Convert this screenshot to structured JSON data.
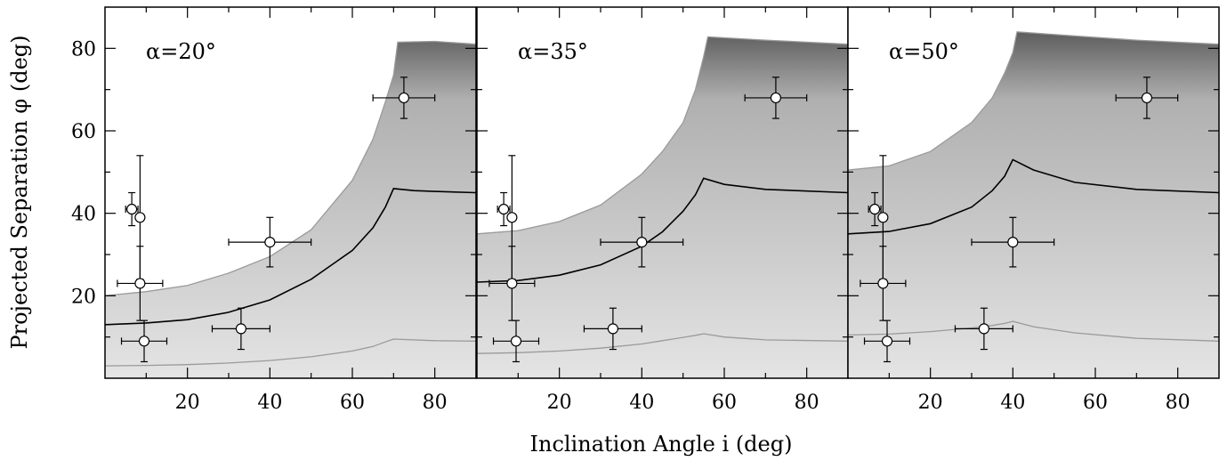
{
  "figure": {
    "xlabel": "Inclination Angle i (deg)",
    "ylabel": "Projected Separation φ (deg)"
  },
  "chart_data": [
    {
      "type": "scatter",
      "annotation": "α=20°",
      "alpha_deg": 20,
      "xlim": [
        0,
        90
      ],
      "ylim": [
        0,
        90
      ],
      "xticks": [
        20,
        40,
        60,
        80
      ],
      "yticks": [
        20,
        40,
        60,
        80
      ],
      "points": [
        {
          "x": 6.5,
          "y": 41,
          "xerr": 1.5,
          "yerr": 4
        },
        {
          "x": 8.5,
          "y": 39,
          "xerr": 0,
          "yerr": 15
        },
        {
          "x": 8.5,
          "y": 23,
          "xerr": 5.5,
          "yerr": 9
        },
        {
          "x": 9.5,
          "y": 9,
          "xerr": 5.5,
          "yerr": 5
        },
        {
          "x": 33,
          "y": 12,
          "xerr": 7,
          "yerr": 5
        },
        {
          "x": 40,
          "y": 33,
          "xerr": 10,
          "yerr": 6
        },
        {
          "x": 72.5,
          "y": 68,
          "xerr": 7.5,
          "yerr": 5
        }
      ],
      "curves": {
        "upper_x": [
          0,
          10,
          20,
          30,
          40,
          50,
          60,
          65,
          68,
          70,
          71,
          80,
          90
        ],
        "upper_y": [
          20,
          21,
          22.5,
          25.5,
          29.5,
          36,
          48,
          58,
          67,
          73.5,
          81.5,
          81.7,
          81
        ],
        "middle_x": [
          0,
          10,
          20,
          30,
          40,
          50,
          60,
          65,
          68,
          70,
          75,
          80,
          90
        ],
        "middle_y": [
          13,
          13.4,
          14.2,
          16,
          19,
          24,
          31,
          36.5,
          41.5,
          46,
          45.5,
          45.3,
          45
        ],
        "lower_x": [
          0,
          10,
          20,
          30,
          40,
          50,
          60,
          65,
          68,
          70,
          80,
          90
        ],
        "lower_y": [
          3,
          3.1,
          3.3,
          3.7,
          4.3,
          5.2,
          6.6,
          7.7,
          8.8,
          9.5,
          9.1,
          9
        ]
      }
    },
    {
      "type": "scatter",
      "annotation": "α=35°",
      "alpha_deg": 35,
      "xlim": [
        0,
        90
      ],
      "ylim": [
        0,
        90
      ],
      "xticks": [
        20,
        40,
        60,
        80
      ],
      "yticks": [],
      "points": [
        {
          "x": 6.5,
          "y": 41,
          "xerr": 1.5,
          "yerr": 4
        },
        {
          "x": 8.5,
          "y": 39,
          "xerr": 0,
          "yerr": 15
        },
        {
          "x": 8.5,
          "y": 23,
          "xerr": 5.5,
          "yerr": 9
        },
        {
          "x": 9.5,
          "y": 9,
          "xerr": 5.5,
          "yerr": 5
        },
        {
          "x": 33,
          "y": 12,
          "xerr": 7,
          "yerr": 5
        },
        {
          "x": 40,
          "y": 33,
          "xerr": 10,
          "yerr": 6
        },
        {
          "x": 72.5,
          "y": 68,
          "xerr": 7.5,
          "yerr": 5
        }
      ],
      "curves": {
        "upper_x": [
          0,
          10,
          20,
          30,
          40,
          45,
          50,
          53,
          55,
          56,
          70,
          90
        ],
        "upper_y": [
          35,
          35.8,
          38,
          42,
          49.5,
          55,
          62,
          70,
          78,
          82.8,
          82,
          81
        ],
        "middle_x": [
          0,
          10,
          20,
          30,
          40,
          45,
          50,
          53,
          55,
          60,
          70,
          90
        ],
        "middle_y": [
          23.3,
          23.7,
          25,
          27.5,
          32,
          35.5,
          40.5,
          44.5,
          48.5,
          47,
          45.8,
          45
        ],
        "lower_x": [
          0,
          10,
          20,
          30,
          40,
          45,
          50,
          53,
          55,
          60,
          70,
          90
        ],
        "lower_y": [
          6,
          6.2,
          6.6,
          7.3,
          8.3,
          9.1,
          9.9,
          10.4,
          10.8,
          10,
          9.3,
          9
        ]
      }
    },
    {
      "type": "scatter",
      "annotation": "α=50°",
      "alpha_deg": 50,
      "xlim": [
        0,
        90
      ],
      "ylim": [
        0,
        90
      ],
      "xticks": [
        20,
        40,
        60,
        80
      ],
      "yticks": [],
      "points": [
        {
          "x": 6.5,
          "y": 41,
          "xerr": 1.5,
          "yerr": 4
        },
        {
          "x": 8.5,
          "y": 39,
          "xerr": 0,
          "yerr": 15
        },
        {
          "x": 8.5,
          "y": 23,
          "xerr": 5.5,
          "yerr": 9
        },
        {
          "x": 9.5,
          "y": 9,
          "xerr": 5.5,
          "yerr": 5
        },
        {
          "x": 33,
          "y": 12,
          "xerr": 7,
          "yerr": 5
        },
        {
          "x": 40,
          "y": 33,
          "xerr": 10,
          "yerr": 6
        },
        {
          "x": 72.5,
          "y": 68,
          "xerr": 7.5,
          "yerr": 5
        }
      ],
      "curves": {
        "upper_x": [
          0,
          10,
          20,
          30,
          35,
          38,
          40,
          41,
          55,
          70,
          90
        ],
        "upper_y": [
          50.5,
          51.5,
          55,
          62,
          68,
          74,
          79,
          84,
          83,
          82,
          81
        ],
        "middle_x": [
          0,
          10,
          20,
          30,
          35,
          38,
          40,
          45,
          55,
          70,
          90
        ],
        "middle_y": [
          35,
          35.6,
          37.5,
          41.5,
          45.5,
          49,
          53,
          50.5,
          47.5,
          45.8,
          45
        ],
        "lower_x": [
          0,
          10,
          20,
          30,
          35,
          38,
          40,
          45,
          55,
          70,
          90
        ],
        "lower_y": [
          10.5,
          10.7,
          11.3,
          12.2,
          12.8,
          13.3,
          13.8,
          12.5,
          11,
          9.7,
          9
        ]
      }
    }
  ]
}
